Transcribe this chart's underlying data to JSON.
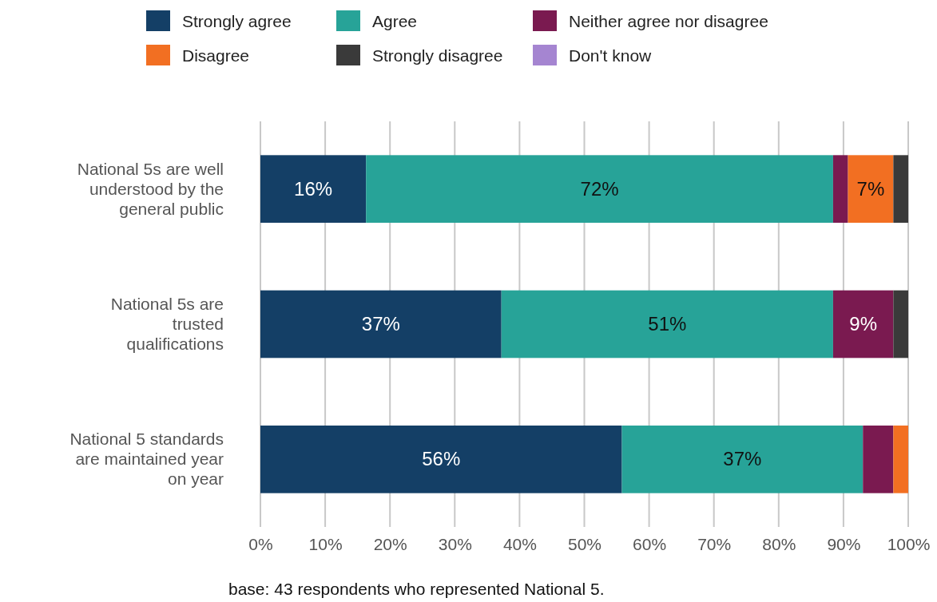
{
  "chart_data": {
    "type": "bar",
    "orientation": "horizontal",
    "stacked": true,
    "categories": [
      "National 5s are well understood by the general public",
      "National 5s are trusted qualifications",
      "National 5 standards are maintained year on year"
    ],
    "series": [
      {
        "name": "Strongly agree",
        "color": "#143f66",
        "values": [
          16.3,
          37.2,
          55.8
        ],
        "value_labels": [
          "16%",
          "37%",
          "56%"
        ]
      },
      {
        "name": "Agree",
        "color": "#27a398",
        "values": [
          72.1,
          51.2,
          37.2
        ],
        "value_labels": [
          "72%",
          "51%",
          "37%"
        ]
      },
      {
        "name": "Neither agree nor disagree",
        "color": "#7a1a50",
        "values": [
          2.3,
          9.3,
          4.7
        ],
        "value_labels": [
          null,
          "9%",
          null
        ]
      },
      {
        "name": "Disagree",
        "color": "#f26f22",
        "values": [
          7.0,
          0,
          2.3
        ],
        "value_labels": [
          "7%",
          null,
          null
        ]
      },
      {
        "name": "Strongly disagree",
        "color": "#3a3a3a",
        "values": [
          2.3,
          2.3,
          0
        ],
        "value_labels": [
          null,
          null,
          null
        ]
      },
      {
        "name": "Don't know",
        "color": "#a585d1",
        "values": [
          0,
          0,
          0
        ],
        "value_labels": [
          null,
          null,
          null
        ]
      }
    ],
    "xlim": [
      0,
      100
    ],
    "xticks": [
      {
        "value": 0,
        "label": "0%"
      },
      {
        "value": 10,
        "label": "10%"
      },
      {
        "value": 20,
        "label": "20%"
      },
      {
        "value": 30,
        "label": "30%"
      },
      {
        "value": 40,
        "label": "40%"
      },
      {
        "value": 50,
        "label": "50%"
      },
      {
        "value": 60,
        "label": "60%"
      },
      {
        "value": 70,
        "label": "70%"
      },
      {
        "value": 80,
        "label": "80%"
      },
      {
        "value": 90,
        "label": "90%"
      },
      {
        "value": 100,
        "label": "100%"
      }
    ],
    "grid": "x",
    "legend": "top",
    "annotations": [
      "base: 43 respondents who represented National 5."
    ]
  }
}
